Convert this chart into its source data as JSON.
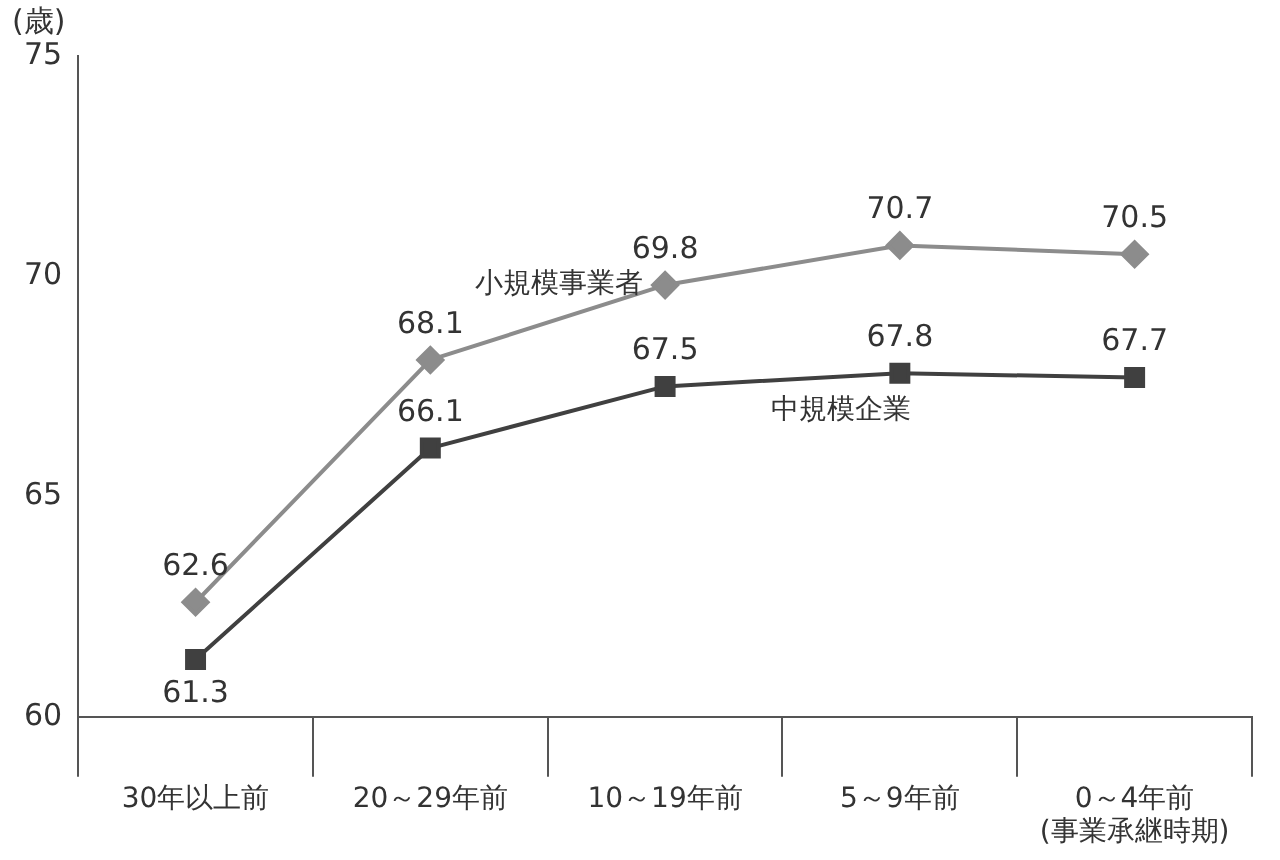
{
  "chart_data": {
    "type": "line",
    "ylabel": "(歳)",
    "categories": [
      "30年以上前",
      "20～29年前",
      "10～19年前",
      "5～9年前",
      "0～4年前\n(事業承継時期)"
    ],
    "series": [
      {
        "name": "小規模事業者",
        "color": "#8c8c8c",
        "marker": "diamond",
        "values": [
          62.6,
          68.1,
          69.8,
          70.7,
          70.5
        ]
      },
      {
        "name": "中規模企業",
        "color": "#404040",
        "marker": "square",
        "values": [
          61.3,
          66.1,
          67.5,
          67.8,
          67.7
        ]
      }
    ],
    "ylim": [
      60,
      75
    ],
    "yticks": [
      60,
      65,
      70,
      75
    ],
    "grid": false,
    "legend": false,
    "data_labels": true
  }
}
